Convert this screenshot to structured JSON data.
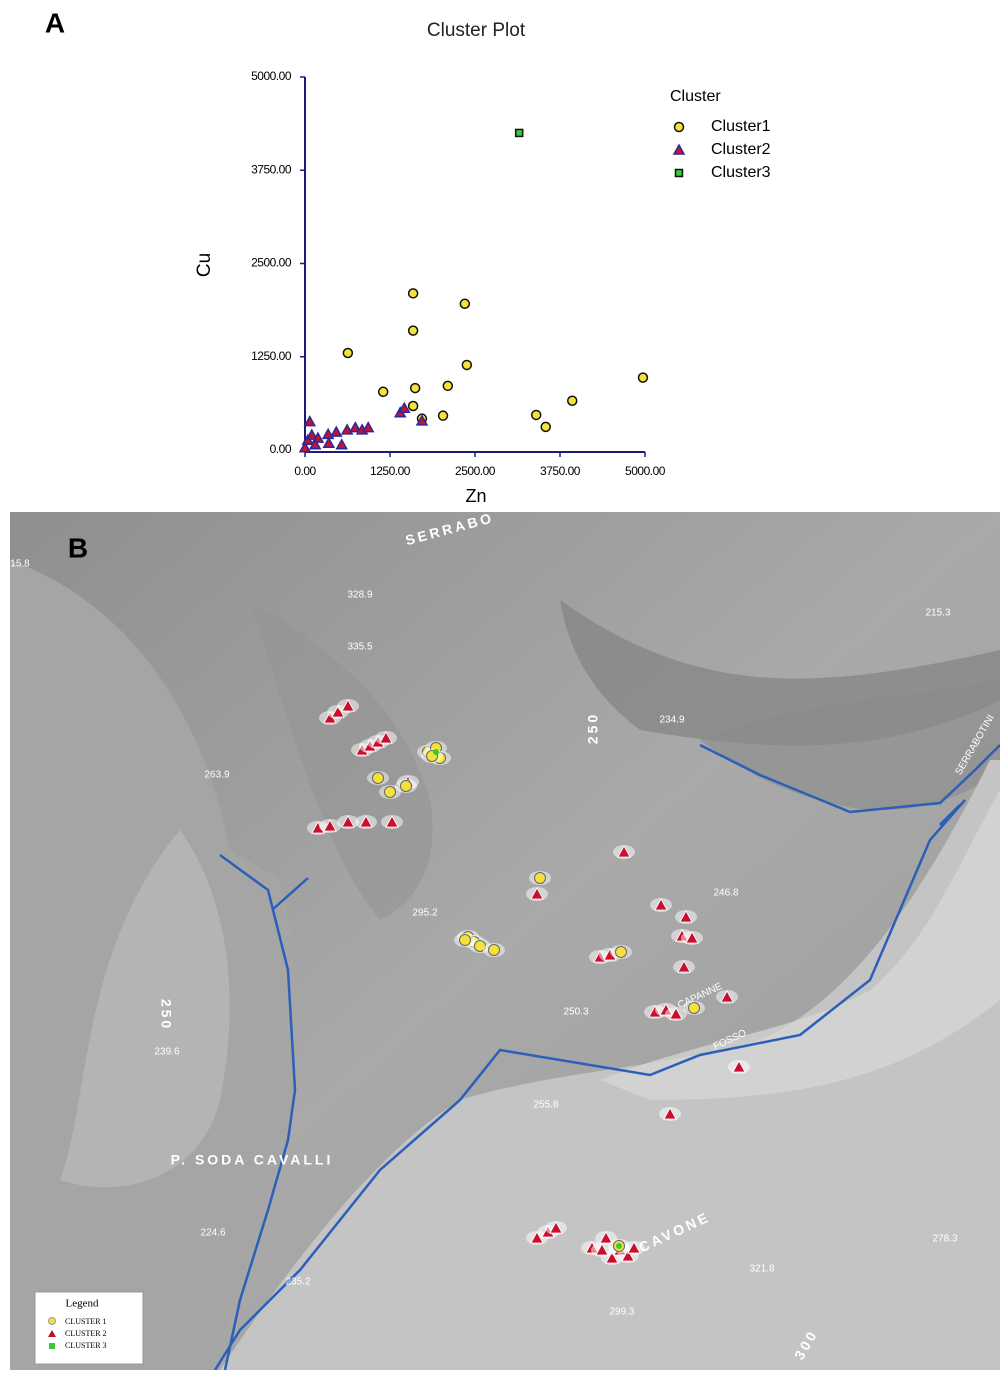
{
  "panel_labels": {
    "a": "A",
    "b": "B"
  },
  "chart_data": {
    "type": "scatter",
    "title": "Cluster Plot",
    "xlabel": "Zn",
    "ylabel": "Cu",
    "xlim": [
      0,
      5000
    ],
    "ylim": [
      0,
      5000
    ],
    "xticks": [
      {
        "value": 0,
        "label": "0.00"
      },
      {
        "value": 1250,
        "label": "1250.00"
      },
      {
        "value": 2500,
        "label": "2500.00"
      },
      {
        "value": 3750,
        "label": "3750.00"
      },
      {
        "value": 5000,
        "label": "5000.00"
      }
    ],
    "yticks": [
      {
        "value": 0,
        "label": "0.00"
      },
      {
        "value": 1250,
        "label": "1250.00"
      },
      {
        "value": 2500,
        "label": "2500.00"
      },
      {
        "value": 3750,
        "label": "3750.00"
      },
      {
        "value": 5000,
        "label": "5000.00"
      }
    ],
    "grid": false,
    "legend_title": "Cluster",
    "legend": "upper right",
    "series": [
      {
        "name": "Cluster1",
        "color": "#f3e23a",
        "marker": "circle",
        "x": [
          630,
          1590,
          1590,
          2350,
          2380,
          1150,
          1620,
          2100,
          2030,
          1720,
          1590,
          3400,
          3540,
          3930,
          4970
        ],
        "values": [
          1300,
          2100,
          1600,
          1960,
          1140,
          780,
          830,
          860,
          460,
          420,
          590,
          470,
          310,
          660,
          970
        ]
      },
      {
        "name": "Cluster2",
        "color": "#c8102e",
        "marker": "triangle",
        "x": [
          70,
          40,
          100,
          190,
          340,
          460,
          350,
          540,
          620,
          740,
          840,
          930,
          1400,
          1460,
          1720,
          0,
          150
        ],
        "values": [
          380,
          130,
          200,
          160,
          210,
          240,
          90,
          70,
          270,
          300,
          270,
          300,
          500,
          560,
          390,
          30,
          70
        ]
      },
      {
        "name": "Cluster3",
        "color": "#33cc33",
        "marker": "square",
        "x": [
          3150
        ],
        "values": [
          4250
        ]
      }
    ]
  },
  "map": {
    "labels": [
      "SERRABO",
      "15.8",
      "328.9",
      "335.5",
      "215.3",
      "234.9",
      "250",
      "263.9",
      "SERRABOTINI",
      "246.8",
      "295.2",
      "250",
      "239.6",
      "250.3",
      "CAPANNE",
      "FOSSO",
      "255.8",
      "P. SODA CAVALLI",
      "224.6",
      "CAVONE",
      "278.3",
      "321.8",
      "235.2",
      "299.3",
      "300"
    ],
    "legend": {
      "title": "Legend",
      "entries": [
        "CLUSTER 1",
        "CLUSTER 2",
        "CLUSTER 3"
      ]
    }
  }
}
